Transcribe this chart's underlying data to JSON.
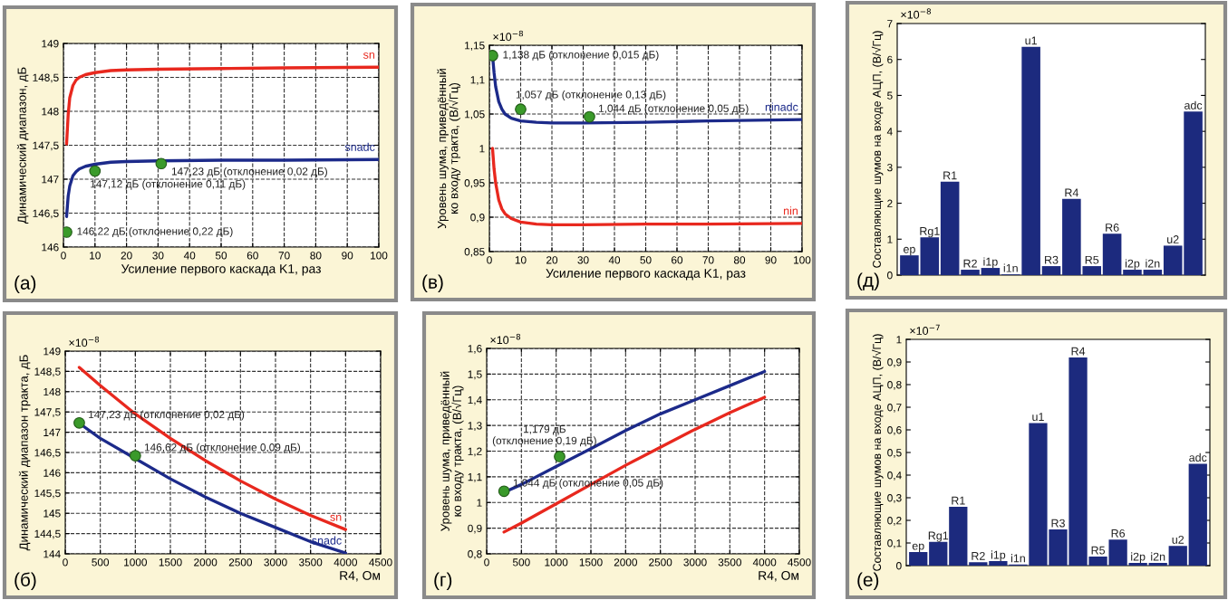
{
  "chart_data": [
    {
      "type": "line",
      "xlabel": "Усиление первого каскада K1, раз",
      "ylabel": "Динамический диапазон, дБ",
      "xlim": [
        0,
        100
      ],
      "xticks": [
        0,
        10,
        20,
        30,
        40,
        50,
        60,
        70,
        80,
        90,
        100
      ],
      "ylim": [
        146,
        149
      ],
      "yticks": [
        146,
        {
          "value": 146.5,
          "label": "146,5"
        },
        147,
        {
          "value": 147.5,
          "label": "147,5"
        },
        148,
        {
          "value": 148.5,
          "label": "148,5"
        },
        149
      ],
      "grid": true,
      "series": [
        {
          "type": "line",
          "name": "sn",
          "color": "#e8281e",
          "x": [
            1,
            1.5,
            2,
            3,
            4,
            5,
            7,
            10,
            15,
            20,
            30,
            50,
            70,
            100
          ],
          "values": [
            147.52,
            147.95,
            148.2,
            148.38,
            148.46,
            148.5,
            148.54,
            148.57,
            148.6,
            148.61,
            148.62,
            148.63,
            148.64,
            148.65
          ]
        },
        {
          "type": "line",
          "name": "snadc",
          "color": "#1c2a8a",
          "x": [
            1,
            1.5,
            2,
            3,
            4,
            5,
            7,
            10,
            15,
            20,
            30,
            50,
            70,
            100
          ],
          "values": [
            146.45,
            146.75,
            146.9,
            147.05,
            147.11,
            147.15,
            147.19,
            147.22,
            147.25,
            147.26,
            147.27,
            147.28,
            147.28,
            147.29
          ]
        },
        {
          "type": "scatter",
          "marker": "circle",
          "color": "#3a9a2a",
          "x": [
            1,
            10,
            31
          ],
          "values": [
            146.22,
            147.12,
            147.23
          ]
        }
      ],
      "annotations": [
        {
          "text": "146,22 дБ (отклонение 0,22 дБ)",
          "x": 1,
          "y": 146.22
        },
        {
          "text": "147,12 дБ (отклонение 0,11 дБ)",
          "x": 10,
          "y": 147.12
        },
        {
          "text": "147,23 дБ (отклонение 0,02 дБ)",
          "x": 31,
          "y": 147.23
        },
        "(а)"
      ]
    },
    {
      "type": "line",
      "xlabel": "Усиление первого каскада K1, раз",
      "ylabel": "Уровень шума, приведённый\nко входу тракта, (В/√Гц)",
      "xlim": [
        0,
        100
      ],
      "xticks": [
        0,
        10,
        20,
        30,
        40,
        50,
        60,
        70,
        80,
        90,
        100
      ],
      "ylim": [
        0.85,
        1.15
      ],
      "yticks": [
        {
          "value": 0.85,
          "label": "0,85"
        },
        {
          "value": 0.9,
          "label": "0,9"
        },
        {
          "value": 0.95,
          "label": "0,95"
        },
        1,
        {
          "value": 1.05,
          "label": "1,05"
        },
        {
          "value": 1.1,
          "label": "1,1"
        },
        {
          "value": 1.15,
          "label": "1,15"
        }
      ],
      "grid": true,
      "series": [
        {
          "type": "line",
          "name": "ninadc",
          "color": "#1c2a8a",
          "x": [
            1,
            1.5,
            2,
            3,
            4,
            5,
            7,
            10,
            15,
            20,
            30,
            50,
            70,
            100
          ],
          "values": [
            1.135,
            1.11,
            1.09,
            1.068,
            1.057,
            1.05,
            1.044,
            1.04,
            1.038,
            1.037,
            1.037,
            1.038,
            1.04,
            1.042
          ]
        },
        {
          "type": "line",
          "name": "nin",
          "color": "#e8281e",
          "x": [
            1,
            1.5,
            2,
            3,
            4,
            5,
            7,
            10,
            15,
            20,
            30,
            50,
            70,
            100
          ],
          "values": [
            1.0,
            0.97,
            0.95,
            0.925,
            0.912,
            0.905,
            0.898,
            0.893,
            0.89,
            0.889,
            0.889,
            0.89,
            0.89,
            0.891
          ]
        },
        {
          "type": "scatter",
          "marker": "circle",
          "color": "#3a9a2a",
          "x": [
            1,
            10,
            32
          ],
          "values": [
            1.135,
            1.057,
            1.046
          ]
        }
      ],
      "annotations": [
        {
          "text": "1,138 дБ (отклонение 0,015 дБ)",
          "x": 1,
          "y": 1.135
        },
        {
          "text": "1,057 дБ (отклонение 0,13 дБ)",
          "x": 10,
          "y": 1.057
        },
        {
          "text": "1,044 дБ (отклонение 0,05 дБ)",
          "x": 32,
          "y": 1.046
        },
        "(в)",
        "×10$^{−8}$"
      ]
    },
    {
      "type": "bar",
      "ylabel": "Составляющие шумов на входе АЦП, (В/√Гц)",
      "tick_labels": "y",
      "categories": [
        "ep",
        "Rg1",
        "R1",
        "R2",
        "i1p",
        "i1n",
        "u1",
        "R3",
        "R4",
        "R5",
        "R6",
        "i2p",
        "i2n",
        "u2",
        "adc"
      ],
      "values": [
        0.55,
        1.05,
        2.6,
        0.15,
        0.2,
        0.02,
        6.35,
        0.25,
        2.12,
        0.25,
        1.15,
        0.15,
        0.15,
        0.82,
        4.55
      ],
      "color": "#1c2a7e",
      "ylim": [
        0,
        7
      ],
      "yticks": [
        0,
        1,
        2,
        3,
        4,
        5,
        6,
        7
      ],
      "annotations": [
        "(д)",
        "×10$^{−8}$"
      ]
    },
    {
      "type": "line",
      "xlabel": "R4, Ом",
      "ylabel": "Динамический диапазон тракта, дБ",
      "xlim": [
        0,
        4500
      ],
      "xticks": [
        0,
        500,
        1000,
        1500,
        2000,
        2500,
        3000,
        3500,
        4000,
        4500
      ],
      "ylim": [
        144,
        149
      ],
      "yticks": [
        144,
        {
          "value": 144.5,
          "label": "144,5"
        },
        145,
        {
          "value": 145.5,
          "label": "145,5"
        },
        146,
        {
          "value": 146.5,
          "label": "146,5"
        },
        147,
        {
          "value": 147.5,
          "label": "147,5"
        },
        148,
        {
          "value": 148.5,
          "label": "148,5"
        },
        149
      ],
      "grid": true,
      "series": [
        {
          "type": "line",
          "name": "sn",
          "color": "#e8281e",
          "x": [
            200,
            500,
            1000,
            1500,
            2000,
            2500,
            3000,
            3500,
            4000
          ],
          "values": [
            148.6,
            148.15,
            147.45,
            146.85,
            146.3,
            145.8,
            145.35,
            144.95,
            144.6
          ]
        },
        {
          "type": "line",
          "name": "snadc",
          "color": "#1c2a8a",
          "x": [
            200,
            500,
            1000,
            1500,
            2000,
            2500,
            3000,
            3500,
            4000
          ],
          "values": [
            147.22,
            146.85,
            146.35,
            145.85,
            145.4,
            145.0,
            144.65,
            144.3,
            144.02
          ]
        },
        {
          "type": "scatter",
          "marker": "circle",
          "color": "#3a9a2a",
          "x": [
            200,
            1000
          ],
          "values": [
            147.23,
            146.42
          ]
        }
      ],
      "annotations": [
        {
          "text": "147,23 дБ (отклонение 0,02 дБ)",
          "x": 200,
          "y": 147.23
        },
        {
          "text": "146,62 дБ (отклонение 0,09 дБ)",
          "x": 1000,
          "y": 146.42
        },
        "(б)",
        "×10$^{−8}$"
      ]
    },
    {
      "type": "line",
      "xlabel": "R4, Ом",
      "ylabel": "Уровень шума, приведённый\nко входу тракта, (В/√Гц)",
      "xlim": [
        0,
        4500
      ],
      "xticks": [
        0,
        500,
        1000,
        1500,
        2000,
        2500,
        3000,
        3500,
        4000,
        4500
      ],
      "ylim": [
        0.8,
        1.6
      ],
      "yticks": [
        {
          "value": 0.8,
          "label": "0,8"
        },
        {
          "value": 0.9,
          "label": "0,9"
        },
        1,
        {
          "value": 1.1,
          "label": "1,1"
        },
        {
          "value": 1.2,
          "label": "1,2"
        },
        {
          "value": 1.3,
          "label": "1,3"
        },
        {
          "value": 1.4,
          "label": "1,4"
        },
        {
          "value": 1.5,
          "label": "1,5"
        },
        {
          "value": 1.6,
          "label": "1,6"
        }
      ],
      "grid": true,
      "series": [
        {
          "type": "line",
          "color": "#1c2a8a",
          "x": [
            250,
            500,
            1000,
            1500,
            2000,
            2500,
            3000,
            3500,
            4000
          ],
          "values": [
            1.04,
            1.07,
            1.14,
            1.21,
            1.28,
            1.345,
            1.4,
            1.455,
            1.51
          ]
        },
        {
          "type": "line",
          "color": "#e8281e",
          "x": [
            250,
            500,
            1000,
            1500,
            2000,
            2500,
            3000,
            3500,
            4000
          ],
          "values": [
            0.885,
            0.92,
            0.995,
            1.07,
            1.145,
            1.215,
            1.285,
            1.35,
            1.41
          ]
        },
        {
          "type": "scatter",
          "marker": "circle",
          "color": "#3a9a2a",
          "x": [
            250,
            1050
          ],
          "values": [
            1.044,
            1.179
          ]
        }
      ],
      "annotations": [
        {
          "text": "1,044 дБ (отклонение 0,05 дБ)",
          "x": 250,
          "y": 1.044
        },
        {
          "text": "1,179 дБ\n(отклонение 0,19 дБ)",
          "x": 1050,
          "y": 1.179
        },
        "(г)",
        "×10$^{−8}$"
      ]
    },
    {
      "type": "bar",
      "ylabel": "Составляющие шумов на входе АЦП, (В/√Гц)",
      "tick_labels": "y",
      "categories": [
        "ep",
        "Rg1",
        "R1",
        "R2",
        "i1p",
        "i1n",
        "u1",
        "R3",
        "R4",
        "R5",
        "R6",
        "i2p",
        "i2n",
        "u2",
        "adc"
      ],
      "values": [
        0.06,
        0.105,
        0.26,
        0.015,
        0.02,
        0.005,
        0.63,
        0.16,
        0.92,
        0.04,
        0.115,
        0.012,
        0.012,
        0.087,
        0.45
      ],
      "color": "#1c2a7e",
      "ylim": [
        0,
        1
      ],
      "yticks": [
        0,
        {
          "value": 0.1,
          "label": "0,1"
        },
        {
          "value": 0.2,
          "label": "0,2"
        },
        {
          "value": 0.3,
          "label": "0,3"
        },
        {
          "value": 0.4,
          "label": "0,4"
        },
        {
          "value": 0.5,
          "label": "0,5"
        },
        {
          "value": 0.6,
          "label": "0,6"
        },
        {
          "value": 0.7,
          "label": "0,7"
        },
        {
          "value": 0.8,
          "label": "0,8"
        },
        {
          "value": 0.9,
          "label": "0,9"
        },
        1
      ],
      "annotations": [
        "(е)",
        "×10$^{−7}$"
      ]
    }
  ]
}
